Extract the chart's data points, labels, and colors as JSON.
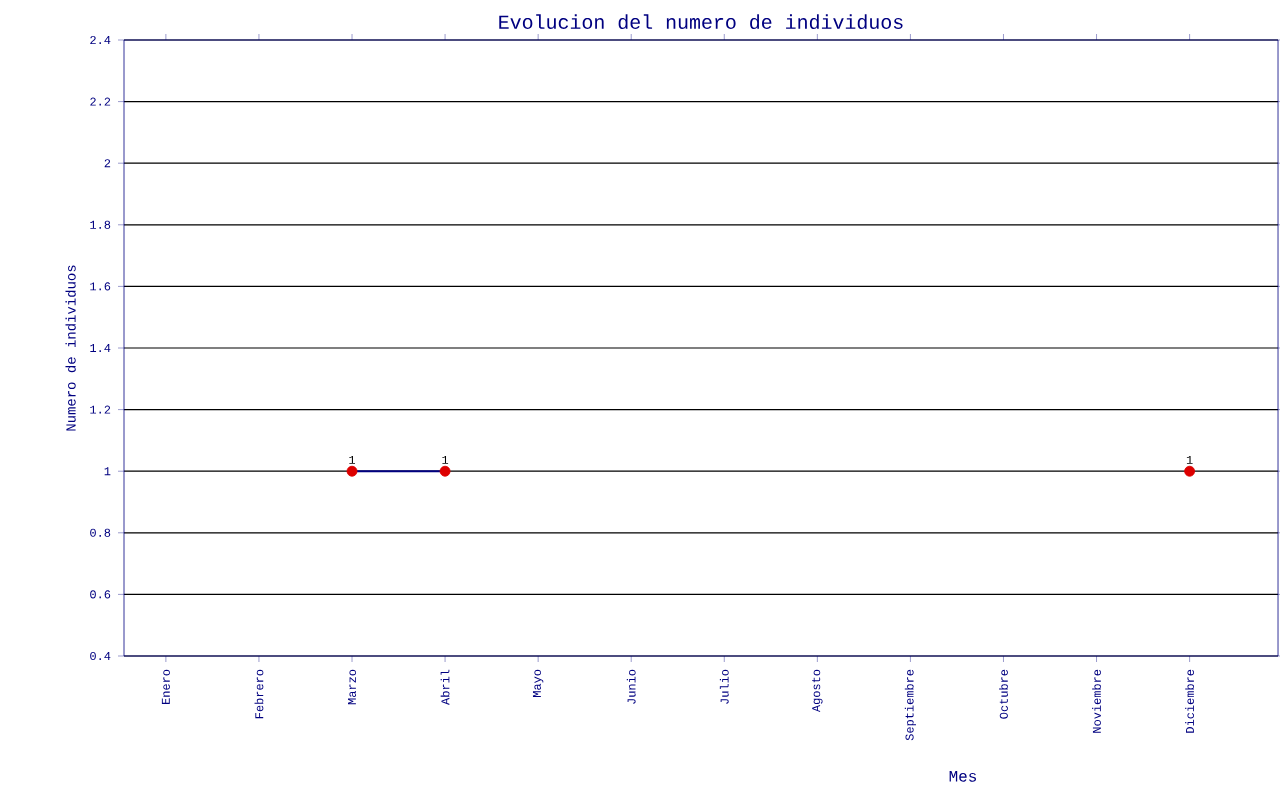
{
  "chart_data": {
    "type": "line",
    "title": "Evolucion del numero de individuos",
    "xlabel": "Mes",
    "ylabel": "Numero de individuos",
    "categories": [
      "Enero",
      "Febrero",
      "Marzo",
      "Abril",
      "Mayo",
      "Junio",
      "Julio",
      "Agosto",
      "Septiembre",
      "Octubre",
      "Noviembre",
      "Diciembre"
    ],
    "series": [
      {
        "color": "#000080",
        "colors": [
          null,
          null,
          "#dd0000",
          "#dd0000",
          null,
          null,
          null,
          null,
          null,
          null,
          null,
          "#dd0000"
        ],
        "values": [
          null,
          null,
          1,
          1,
          null,
          null,
          null,
          null,
          null,
          null,
          null,
          1
        ]
      }
    ],
    "ylim": [
      0.4,
      2.4
    ],
    "yticks": [
      0.4,
      0.6,
      0.8,
      1,
      1.2,
      1.4,
      1.6,
      1.8,
      2,
      2.2,
      2.4
    ],
    "grid": "y",
    "marker": "circle",
    "line_style": "solid",
    "data_labels": true
  }
}
